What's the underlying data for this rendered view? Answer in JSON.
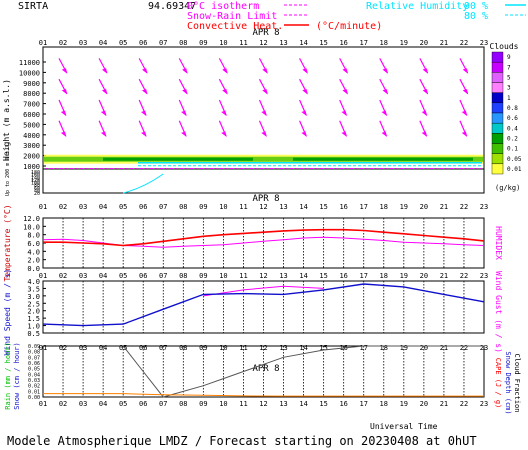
{
  "header": {
    "site": "SIRTA",
    "coords": "94.69347",
    "legend_rh": "Relative Humidity",
    "legend_rh_90": "90 %",
    "legend_rh_80": "80 %",
    "legend_iso": "0°C isotherm",
    "legend_snow": "Snow-Rain Limit",
    "legend_conv": "Convective Heat.",
    "legend_conv_unit": "(°C/minute)"
  },
  "colors": {
    "magenta": "#ff00ff",
    "cyan": "#00e5ff",
    "red": "#ff0000",
    "darkred": "#cc0000",
    "blue": "#1010cc",
    "grey": "#555555",
    "orange": "#ff8000"
  },
  "hours": [
    "01",
    "02",
    "03",
    "04",
    "05",
    "06",
    "07",
    "08",
    "09",
    "10",
    "11",
    "12",
    "13",
    "14",
    "15",
    "16",
    "17",
    "18",
    "19",
    "20",
    "21",
    "22",
    "23"
  ],
  "date_label": "APR  8",
  "x_axis_label": "Universal Time",
  "footer": "Modele Atmospherique LMDZ / Forecast starting on 20230408 at 0hUT",
  "chart_data": [
    {
      "type": "heatmap",
      "name": "clouds-panel",
      "ylabel": "Height (m a.s.l.)",
      "ylabel_low": "Up to 200 m a.s.l.",
      "yticks": [
        "11000",
        "10000",
        "9000",
        "8000",
        "7000",
        "6000",
        "5000",
        "4000",
        "3000",
        "2000",
        "1000"
      ],
      "yticks_low": [
        "180",
        "160",
        "140",
        "120",
        "100",
        "80",
        "60",
        "40",
        "20"
      ],
      "colorbar": {
        "title": "Clouds",
        "unit": "(g/kg)",
        "labels": [
          "9",
          "7",
          "5",
          "3",
          "1",
          "0.8",
          "0.6",
          "0.4",
          "0.2",
          "0.1",
          "0.05",
          "0.01"
        ],
        "colors": [
          "#9400ff",
          "#c800ff",
          "#e060ff",
          "#ff80ff",
          "#0000c8",
          "#1e40ff",
          "#2896ff",
          "#00c8c8",
          "#00a000",
          "#40c000",
          "#a0e000",
          "#ffff40"
        ]
      },
      "wind_arrows_rows": [
        10000,
        8000,
        6000,
        4000
      ],
      "cloud_layer_m": 1700,
      "isotherm_m": 1050
    },
    {
      "type": "line",
      "name": "temperature-panel",
      "ylabel": "Temperature (°C)",
      "y2label": "HUMIDEX",
      "yticks": [
        "12.0",
        "10.0",
        "8.0",
        "6.0",
        "4.0",
        "2.0",
        "0.0"
      ],
      "ylim": [
        0,
        12
      ],
      "x": [
        1,
        2,
        3,
        4,
        5,
        6,
        7,
        8,
        9,
        10,
        11,
        12,
        13,
        14,
        15,
        16,
        17,
        18,
        19,
        20,
        21,
        22,
        23
      ],
      "series": [
        {
          "name": "Temperature",
          "values": [
            6.2,
            6.2,
            6.0,
            5.8,
            5.4,
            5.8,
            6.4,
            7.0,
            7.6,
            8.0,
            8.3,
            8.6,
            8.9,
            9.1,
            9.2,
            9.2,
            9.0,
            8.6,
            8.2,
            7.8,
            7.4,
            7.0,
            6.5
          ]
        },
        {
          "name": "Humidex",
          "values": [
            6.8,
            6.9,
            6.6,
            6.0,
            5.4,
            5.2,
            5.0,
            5.2,
            5.4,
            5.6,
            6.0,
            6.4,
            6.8,
            7.2,
            7.4,
            7.2,
            6.9,
            6.6,
            6.2,
            6.0,
            5.8,
            5.6,
            5.4
          ]
        }
      ]
    },
    {
      "type": "line",
      "name": "wind-panel",
      "ylabel": "Wind Speed (m / s)",
      "y2label": "Wind Gust (m / s)",
      "yticks": [
        "4.0",
        "3.5",
        "3.0",
        "2.5",
        "2.0",
        "1.5",
        "1.0",
        "0.5"
      ],
      "ylim": [
        0.5,
        4.0
      ],
      "x": [
        1,
        3,
        5,
        7,
        9,
        11,
        13,
        15,
        17,
        19,
        21,
        23
      ],
      "series": [
        {
          "name": "Wind Speed",
          "values": [
            1.1,
            1.0,
            1.1,
            2.1,
            3.1,
            3.15,
            3.1,
            3.4,
            3.8,
            3.6,
            3.1,
            2.6
          ]
        },
        {
          "name": "Wind Gust",
          "values": [
            null,
            null,
            null,
            null,
            3.0,
            3.4,
            3.65,
            3.5,
            null,
            null,
            null,
            null
          ]
        }
      ]
    },
    {
      "type": "line",
      "name": "rain-panel",
      "ylabel": "Rain (mm / hour)",
      "ylabel2": "Snow (cm / hour)",
      "y2label": "CAPE (J / g)",
      "y2label2": "Snow Depth (cm)",
      "y2label3": "Cloud Fraction",
      "yticks": [
        "0.09",
        "0.08",
        "0.07",
        "0.06",
        "0.05",
        "0.04",
        "0.03",
        "0.02",
        "0.01",
        "0.00"
      ],
      "ylim": [
        0,
        0.09
      ],
      "x": [
        1,
        3,
        5,
        6,
        7,
        9,
        11,
        13,
        15,
        17,
        19,
        21,
        23
      ],
      "series": [
        {
          "name": "Cloud Fraction",
          "values": [
            null,
            null,
            0.09,
            0.045,
            0.0,
            0.02,
            0.045,
            0.07,
            0.083,
            0.09,
            0.09,
            0.09,
            0.09
          ]
        },
        {
          "name": "Rain",
          "values": [
            0.006,
            0.006,
            0.006,
            0.005,
            0.004,
            0.003,
            0.002,
            0.0015,
            0.0015,
            0.0015,
            0.0015,
            0.0015,
            0.0015
          ]
        }
      ]
    }
  ]
}
